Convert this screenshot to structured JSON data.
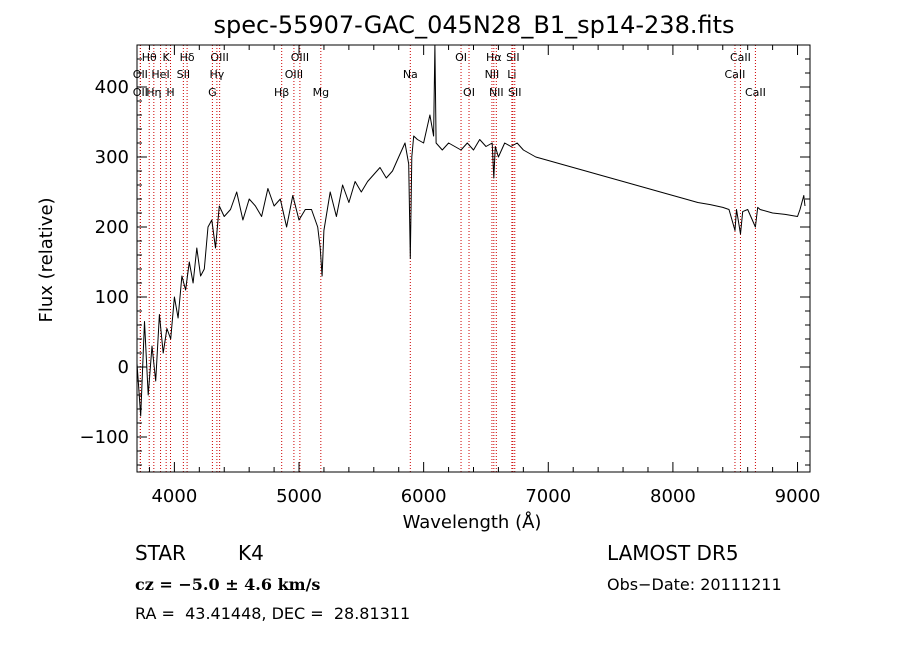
{
  "chart_data": {
    "type": "line",
    "title": "spec-55907-GAC_045N28_B1_sp14-238.fits",
    "xlabel": "Wavelength (Å)",
    "ylabel": "Flux (relative)",
    "xlim": [
      3700,
      9100
    ],
    "ylim": [
      -150,
      460
    ],
    "x_ticks": [
      4000,
      5000,
      6000,
      7000,
      8000,
      9000
    ],
    "x_tick_labels": [
      "4000",
      "5000",
      "6000",
      "7000",
      "8000",
      "9000"
    ],
    "y_ticks": [
      -100,
      0,
      100,
      200,
      300,
      400
    ],
    "y_tick_labels": [
      "−100",
      "0",
      "100",
      "200",
      "300",
      "400"
    ],
    "grid": false,
    "series": [
      {
        "color": "#000000",
        "x": [
          3700,
          3730,
          3760,
          3790,
          3820,
          3850,
          3880,
          3910,
          3940,
          3970,
          4000,
          4030,
          4060,
          4090,
          4120,
          4150,
          4180,
          4210,
          4240,
          4270,
          4300,
          4330,
          4360,
          4400,
          4450,
          4500,
          4550,
          4600,
          4650,
          4700,
          4750,
          4800,
          4850,
          4900,
          4950,
          5000,
          5050,
          5100,
          5150,
          5170,
          5185,
          5200,
          5250,
          5300,
          5350,
          5400,
          5450,
          5500,
          5550,
          5600,
          5650,
          5700,
          5750,
          5800,
          5850,
          5880,
          5893,
          5905,
          5920,
          5950,
          6000,
          6050,
          6080,
          6090,
          6100,
          6150,
          6200,
          6250,
          6300,
          6350,
          6400,
          6450,
          6500,
          6550,
          6563,
          6575,
          6600,
          6650,
          6700,
          6750,
          6800,
          6900,
          7000,
          7100,
          7200,
          7300,
          7400,
          7500,
          7600,
          7700,
          7800,
          7900,
          8000,
          8100,
          8200,
          8300,
          8400,
          8450,
          8498,
          8510,
          8542,
          8560,
          8600,
          8662,
          8680,
          8700,
          8800,
          8900,
          9000,
          9020,
          9050,
          9060
        ],
        "values": [
          5,
          -70,
          65,
          -40,
          30,
          -20,
          75,
          20,
          55,
          40,
          100,
          70,
          130,
          110,
          150,
          120,
          170,
          130,
          140,
          200,
          210,
          170,
          230,
          215,
          225,
          250,
          210,
          240,
          230,
          215,
          255,
          230,
          240,
          200,
          245,
          210,
          225,
          225,
          200,
          170,
          130,
          195,
          250,
          215,
          260,
          235,
          265,
          250,
          265,
          275,
          285,
          270,
          280,
          300,
          320,
          290,
          155,
          300,
          330,
          325,
          320,
          360,
          330,
          460,
          320,
          310,
          320,
          315,
          310,
          320,
          310,
          325,
          315,
          320,
          270,
          315,
          300,
          320,
          315,
          320,
          310,
          300,
          295,
          290,
          285,
          280,
          275,
          270,
          265,
          260,
          255,
          250,
          245,
          240,
          235,
          232,
          228,
          225,
          195,
          225,
          190,
          222,
          225,
          200,
          228,
          225,
          220,
          218,
          215,
          225,
          245,
          230
        ]
      }
    ],
    "line_markers": [
      {
        "label": "Hθ",
        "x": 3798,
        "row": 1
      },
      {
        "label": "OII",
        "x": 3727,
        "row": 2
      },
      {
        "label": "OII",
        "x": 3727,
        "row": 3
      },
      {
        "label": "K",
        "x": 3934,
        "row": 1
      },
      {
        "label": "HeI",
        "x": 3889,
        "row": 2
      },
      {
        "label": "Hη",
        "x": 3835,
        "row": 3
      },
      {
        "label": "H",
        "x": 3969,
        "row": 3
      },
      {
        "label": "Hδ",
        "x": 4102,
        "row": 1
      },
      {
        "label": "SII",
        "x": 4072,
        "row": 2
      },
      {
        "label": "OIII",
        "x": 4363,
        "row": 1
      },
      {
        "label": "Hγ",
        "x": 4341,
        "row": 2
      },
      {
        "label": "G",
        "x": 4305,
        "row": 3
      },
      {
        "label": "OIII",
        "x": 5007,
        "row": 1
      },
      {
        "label": "OIII",
        "x": 4959,
        "row": 2
      },
      {
        "label": "Hβ",
        "x": 4861,
        "row": 3
      },
      {
        "label": "Mg",
        "x": 5175,
        "row": 3
      },
      {
        "label": "Na",
        "x": 5893,
        "row": 2
      },
      {
        "label": "OI",
        "x": 6300,
        "row": 1
      },
      {
        "label": "OI",
        "x": 6364,
        "row": 3
      },
      {
        "label": "Hα",
        "x": 6563,
        "row": 1
      },
      {
        "label": "SII",
        "x": 6716,
        "row": 1
      },
      {
        "label": "NII",
        "x": 6548,
        "row": 2
      },
      {
        "label": "Li",
        "x": 6708,
        "row": 2
      },
      {
        "label": "NII",
        "x": 6583,
        "row": 3
      },
      {
        "label": "SII",
        "x": 6731,
        "row": 3
      },
      {
        "label": "CaII",
        "x": 8542,
        "row": 1
      },
      {
        "label": "CaII",
        "x": 8498,
        "row": 2
      },
      {
        "label": "CaII",
        "x": 8662,
        "row": 3
      }
    ]
  },
  "info": {
    "object_class": "STAR",
    "subclass": "K4",
    "survey": "LAMOST DR5",
    "redshift": "cz = −5.0 ± 4.6 km/s",
    "obs_date": "Obs−Date: 20111211",
    "coords": "RA =  43.41448, DEC =  28.81311"
  }
}
